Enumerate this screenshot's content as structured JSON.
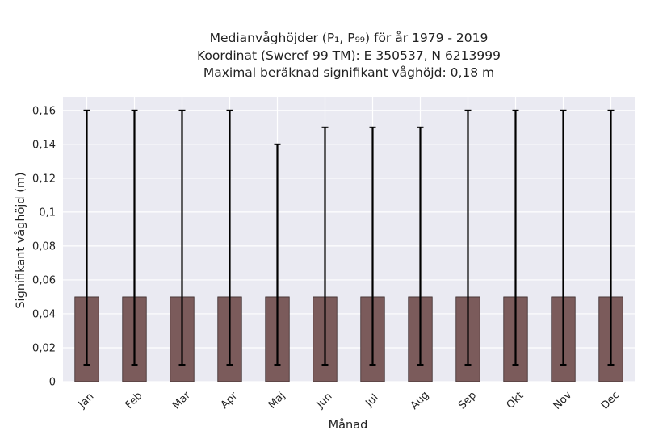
{
  "chart_data": {
    "type": "bar",
    "title_lines": [
      "Medianvåghöjder (P₁, P₉₉) för år 1979 - 2019",
      "Koordinat (Sweref 99 TM): E 350537, N 6213999",
      "Maximal beräknad signifikant våghöjd: 0,18 m"
    ],
    "xlabel": "Månad",
    "ylabel": "Signifikant våghöjd (m)",
    "categories": [
      "Jan",
      "Feb",
      "Mar",
      "Apr",
      "Maj",
      "Jun",
      "Jul",
      "Aug",
      "Sep",
      "Okt",
      "Nov",
      "Dec"
    ],
    "values": [
      0.05,
      0.05,
      0.05,
      0.05,
      0.05,
      0.05,
      0.05,
      0.05,
      0.05,
      0.05,
      0.05,
      0.05
    ],
    "err_low": [
      0.01,
      0.01,
      0.01,
      0.01,
      0.01,
      0.01,
      0.01,
      0.01,
      0.01,
      0.01,
      0.01,
      0.01
    ],
    "err_high": [
      0.16,
      0.16,
      0.16,
      0.16,
      0.14,
      0.15,
      0.15,
      0.15,
      0.16,
      0.16,
      0.16,
      0.16
    ],
    "ylim": [
      0,
      0.168
    ],
    "yticks": [
      0,
      0.02,
      0.04,
      0.06,
      0.08,
      0.1,
      0.12,
      0.14,
      0.16
    ],
    "ytick_labels": [
      "0",
      "0,02",
      "0,04",
      "0,06",
      "0,08",
      "0,1",
      "0,12",
      "0,14",
      "0,16"
    ],
    "grid": true,
    "colors": {
      "bar": "#7b5b5b",
      "bar_edge": "#3a2a2a",
      "error": "#000000",
      "plot_bg": "#eaeaf2",
      "grid": "#ffffff"
    }
  }
}
